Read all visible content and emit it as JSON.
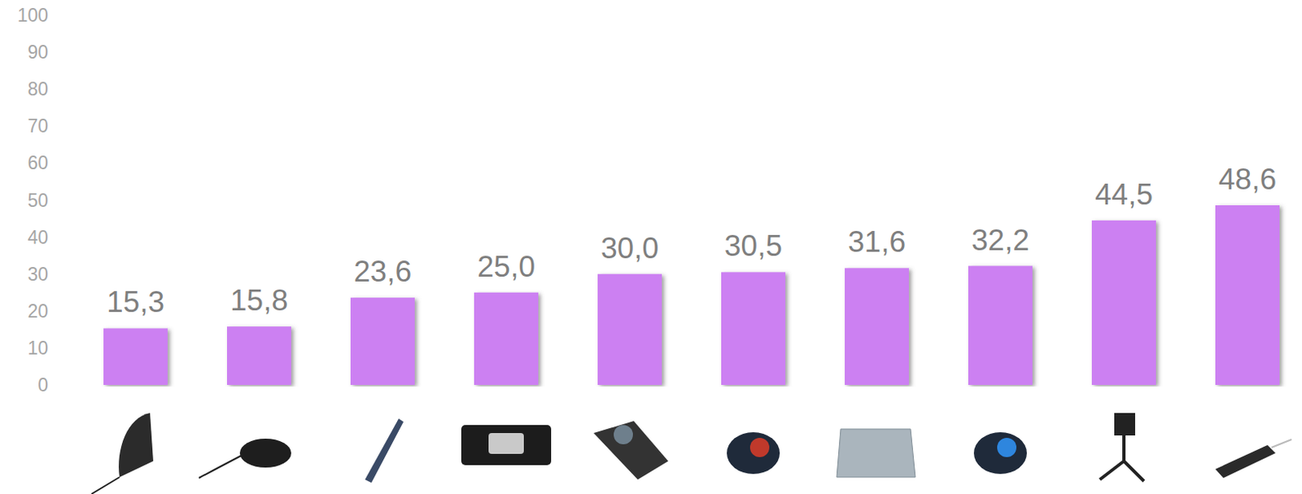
{
  "chart_data": {
    "type": "bar",
    "categories": [
      null,
      null,
      null,
      null,
      null,
      null,
      null,
      null,
      null,
      null
    ],
    "values": [
      15.3,
      15.8,
      23.6,
      25.0,
      30.0,
      30.5,
      31.6,
      32.2,
      44.5,
      48.6
    ],
    "value_labels": [
      "15,3",
      "15,8",
      "23,6",
      "25,0",
      "30,0",
      "30,5",
      "31,6",
      "32,2",
      "44,5",
      "48,6"
    ],
    "color": "#cc80f2",
    "ylim": [
      0,
      100
    ],
    "yticks": [
      0,
      10,
      20,
      30,
      40,
      50,
      60,
      70,
      80,
      90,
      100
    ],
    "grid": false,
    "data_labels": true
  }
}
